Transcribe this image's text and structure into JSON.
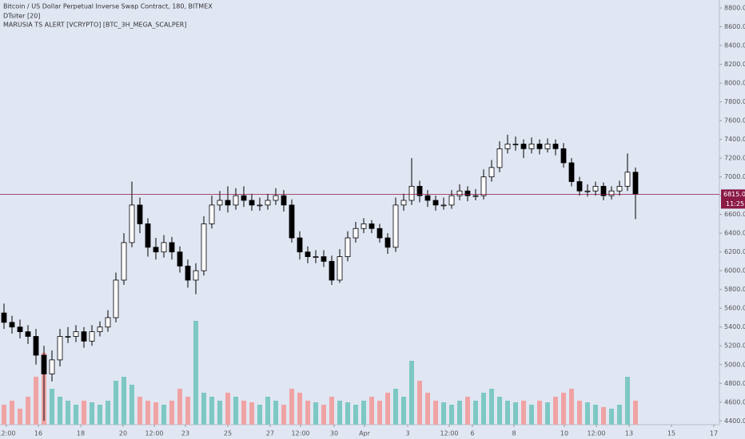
{
  "chart_data": {
    "type": "candlestick",
    "title": "Bitcoin / US Dollar Perpetual Inverse Swap Contract, 180, BITMEX",
    "indicators": [
      "DTsiter [20]",
      "MARUSIA TS ALERT [VCRYPTO] [BTC_3H_MEGA_SCALPER]"
    ],
    "open": [
      5550,
      5450,
      5400,
      5350,
      5300,
      5100,
      4900,
      5050,
      5300,
      5300,
      5350,
      5250,
      5350,
      5400,
      5500,
      5900,
      6300,
      6700,
      6500,
      6250,
      6200,
      6300,
      6200,
      6050,
      5900,
      6000,
      6500,
      6700,
      6750,
      6700,
      6800,
      6750,
      6700,
      6700,
      6750,
      6800,
      6700,
      6350,
      6200,
      6150,
      6150,
      6100,
      5900,
      6150,
      6350,
      6450,
      6500,
      6450,
      6350,
      6250,
      6700,
      6750,
      6900,
      6800,
      6750,
      6700,
      6700,
      6800,
      6850,
      6800,
      6800,
      7000,
      7100,
      7300,
      7350,
      7350,
      7300,
      7350,
      7300,
      7350,
      7300,
      7150,
      6950,
      6850,
      6850,
      6900,
      6800,
      6850,
      6900,
      7050
    ],
    "high": [
      5650,
      5520,
      5480,
      5420,
      5380,
      5200,
      5150,
      5380,
      5400,
      5420,
      5400,
      5420,
      5460,
      5580,
      5980,
      6400,
      6950,
      6780,
      6560,
      6350,
      6380,
      6360,
      6260,
      6120,
      6080,
      6580,
      6800,
      6850,
      6900,
      6880,
      6900,
      6820,
      6780,
      6820,
      6880,
      6860,
      6760,
      6420,
      6260,
      6220,
      6220,
      6160,
      6230,
      6420,
      6520,
      6560,
      6540,
      6500,
      6400,
      6780,
      6820,
      7200,
      6960,
      6860,
      6800,
      6780,
      6860,
      6920,
      6900,
      6870,
      7080,
      7180,
      7380,
      7450,
      7430,
      7400,
      7420,
      7400,
      7410,
      7400,
      7360,
      7200,
      7000,
      6920,
      6950,
      6940,
      6900,
      6960,
      7250,
      7100
    ],
    "low": [
      5380,
      5330,
      5280,
      5220,
      5000,
      4400,
      4820,
      4980,
      5230,
      5240,
      5180,
      5200,
      5300,
      5350,
      5450,
      5850,
      6250,
      6400,
      6150,
      6120,
      6140,
      6120,
      5980,
      5820,
      5750,
      5950,
      6450,
      6640,
      6620,
      6650,
      6680,
      6640,
      6640,
      6650,
      6700,
      6630,
      6300,
      6120,
      6080,
      6080,
      6040,
      5850,
      5870,
      6100,
      6300,
      6400,
      6400,
      6300,
      6180,
      6200,
      6640,
      6700,
      6730,
      6680,
      6640,
      6650,
      6660,
      6750,
      6740,
      6750,
      6760,
      6950,
      7050,
      7250,
      7280,
      7200,
      7250,
      7240,
      7260,
      7230,
      7100,
      6900,
      6800,
      6790,
      6800,
      6750,
      6760,
      6800,
      6850,
      6550
    ],
    "close": [
      5450,
      5400,
      5350,
      5300,
      5100,
      4900,
      5050,
      5300,
      5300,
      5350,
      5250,
      5350,
      5400,
      5500,
      5900,
      6300,
      6700,
      6500,
      6250,
      6200,
      6300,
      6200,
      6050,
      5900,
      6000,
      6500,
      6700,
      6750,
      6700,
      6800,
      6750,
      6700,
      6700,
      6750,
      6800,
      6700,
      6350,
      6200,
      6150,
      6150,
      6100,
      5900,
      6150,
      6350,
      6450,
      6500,
      6450,
      6350,
      6250,
      6700,
      6750,
      6900,
      6800,
      6750,
      6700,
      6700,
      6800,
      6850,
      6800,
      6800,
      7000,
      7100,
      7300,
      7350,
      7350,
      7300,
      7350,
      7300,
      7350,
      7300,
      7150,
      6950,
      6850,
      6850,
      6900,
      6800,
      6850,
      6900,
      7050,
      6815
    ],
    "volume": [
      25,
      30,
      20,
      35,
      60,
      90,
      45,
      35,
      30,
      25,
      30,
      28,
      25,
      30,
      55,
      60,
      50,
      35,
      30,
      28,
      25,
      30,
      45,
      35,
      130,
      40,
      35,
      30,
      40,
      35,
      30,
      28,
      25,
      35,
      30,
      25,
      45,
      40,
      30,
      28,
      25,
      35,
      30,
      28,
      25,
      30,
      35,
      30,
      40,
      45,
      35,
      80,
      55,
      40,
      30,
      28,
      25,
      30,
      35,
      30,
      40,
      45,
      35,
      30,
      28,
      30,
      25,
      30,
      28,
      35,
      40,
      45,
      30,
      28,
      25,
      22,
      20,
      25,
      60,
      30
    ],
    "up_color": "#ffffff",
    "down_color": "#000000",
    "wick_color": "#000000",
    "volume_up_color": "#7ec8c3",
    "volume_down_color": "#f0a3a3",
    "xlim": [
      -0.5,
      89.5
    ],
    "xticks": [
      {
        "value": 0.3,
        "label": "12:00"
      },
      {
        "value": 4.3,
        "label": "16"
      },
      {
        "value": 9.6,
        "label": "18"
      },
      {
        "value": 14.9,
        "label": "20"
      },
      {
        "value": 18.8,
        "label": "12:00"
      },
      {
        "value": 22.7,
        "label": "23"
      },
      {
        "value": 28,
        "label": "25"
      },
      {
        "value": 33.3,
        "label": "27"
      },
      {
        "value": 37.1,
        "label": "12:00"
      },
      {
        "value": 41.3,
        "label": "30"
      },
      {
        "value": 45.1,
        "label": "Apr"
      },
      {
        "value": 50.5,
        "label": "3"
      },
      {
        "value": 55.7,
        "label": "12:00"
      },
      {
        "value": 58.6,
        "label": "6"
      },
      {
        "value": 63.8,
        "label": "8"
      },
      {
        "value": 70.1,
        "label": "10"
      },
      {
        "value": 74.1,
        "label": "12:00"
      },
      {
        "value": 78.2,
        "label": "13"
      },
      {
        "value": 83.5,
        "label": "15"
      },
      {
        "value": 88.8,
        "label": "17"
      }
    ],
    "ylim": [
      4360,
      8885
    ],
    "yticks": [
      {
        "value": 4400,
        "label": "4400.0"
      },
      {
        "value": 4600,
        "label": "4600.0"
      },
      {
        "value": 4800,
        "label": "4800.0"
      },
      {
        "value": 5000,
        "label": "5000.0"
      },
      {
        "value": 5200,
        "label": "5200.0"
      },
      {
        "value": 5400,
        "label": "5400.0"
      },
      {
        "value": 5600,
        "label": "5600.0"
      },
      {
        "value": 5800,
        "label": "5800.0"
      },
      {
        "value": 6000,
        "label": "6000.0"
      },
      {
        "value": 6200,
        "label": "6200.0"
      },
      {
        "value": 6400,
        "label": "6400.0"
      },
      {
        "value": 6600,
        "label": "6600.0"
      },
      {
        "value": 6800,
        "label": "6800.0"
      },
      {
        "value": 7000,
        "label": "7000.0"
      },
      {
        "value": 7200,
        "label": "7200.0"
      },
      {
        "value": 7400,
        "label": "7400.0"
      },
      {
        "value": 7600,
        "label": "7600.0"
      },
      {
        "value": 7800,
        "label": "7800.0"
      },
      {
        "value": 8000,
        "label": "8000.0"
      },
      {
        "value": 8200,
        "label": "8200.0"
      },
      {
        "value": 8400,
        "label": "8400.0"
      },
      {
        "value": 8600,
        "label": "8600.0"
      },
      {
        "value": 8800,
        "label": "8800.0"
      }
    ],
    "volume_lim": [
      0,
      150
    ],
    "last_price": {
      "value": 6815,
      "label": "6815.0"
    },
    "countdown": "11:25",
    "last_price_color": "#8b1a45"
  }
}
